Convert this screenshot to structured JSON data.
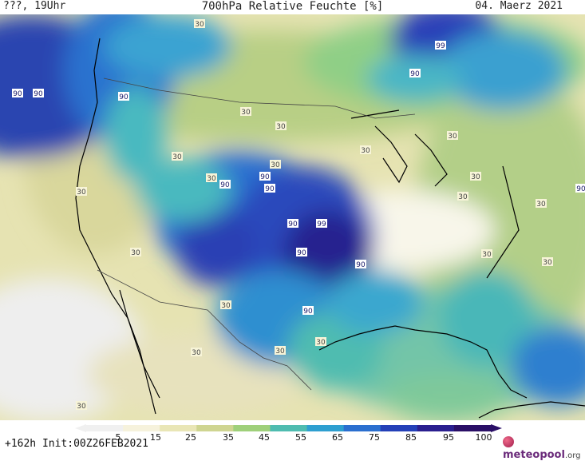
{
  "header": {
    "left": "???, 19Uhr",
    "title": "700hPa Relative Feuchte [%]",
    "date": "04. Maerz 2021"
  },
  "footer": {
    "init": "+162h Init:00Z26FEB2021",
    "brand": "meteopool",
    "brand_tld": ".org"
  },
  "legend": {
    "ticks": [
      "5",
      "15",
      "25",
      "35",
      "45",
      "55",
      "65",
      "75",
      "85",
      "95",
      "100"
    ],
    "colors": [
      "#f0f0f0",
      "#f6f2dc",
      "#e9e6b6",
      "#cfd591",
      "#9fd07a",
      "#4fbcb0",
      "#2e9fd0",
      "#2b6fcf",
      "#2440b8",
      "#2a1f8f",
      "#2a0f66"
    ]
  },
  "map_labels": [
    {
      "text": "30"
    },
    {
      "text": "90"
    },
    {
      "text": "90"
    },
    {
      "text": "90"
    },
    {
      "text": "30"
    },
    {
      "text": "30"
    },
    {
      "text": "30"
    },
    {
      "text": "30"
    },
    {
      "text": "30"
    },
    {
      "text": "90"
    },
    {
      "text": "90"
    },
    {
      "text": "90"
    },
    {
      "text": "30"
    },
    {
      "text": "30"
    },
    {
      "text": "90"
    },
    {
      "text": "99"
    },
    {
      "text": "90"
    },
    {
      "text": "90"
    },
    {
      "text": "30"
    },
    {
      "text": "90"
    },
    {
      "text": "30"
    },
    {
      "text": "30"
    },
    {
      "text": "30"
    },
    {
      "text": "30"
    },
    {
      "text": "30"
    },
    {
      "text": "99"
    },
    {
      "text": "90"
    },
    {
      "text": "30"
    },
    {
      "text": "30"
    },
    {
      "text": "30"
    },
    {
      "text": "30"
    },
    {
      "text": "30"
    },
    {
      "text": "90"
    },
    {
      "text": "30"
    }
  ]
}
